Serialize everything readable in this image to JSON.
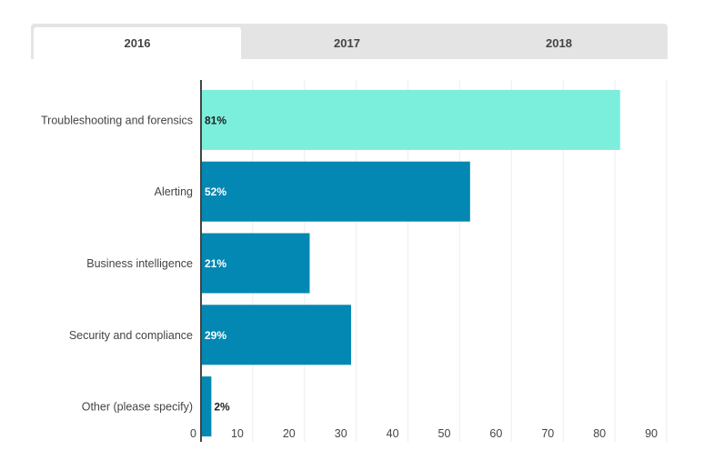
{
  "tabs": [
    {
      "label": "2016",
      "active": true
    },
    {
      "label": "2017",
      "active": false
    },
    {
      "label": "2018",
      "active": false
    }
  ],
  "colors": {
    "bar": "#0288b2",
    "bar_highlight": "#7beedc",
    "gridline": "#eeeeee",
    "axis": "#444444",
    "tab_bg": "#e4e4e4",
    "tab_active_bg": "#ffffff"
  },
  "chart_data": {
    "type": "bar",
    "orientation": "horizontal",
    "title": "",
    "xlabel": "",
    "ylabel": "",
    "categories": [
      "Troubleshooting and forensics",
      "Alerting",
      "Business intelligence",
      "Security and compliance",
      "Other (please specify)"
    ],
    "values": [
      81,
      52,
      21,
      29,
      2
    ],
    "value_labels": [
      "81%",
      "52%",
      "21%",
      "29%",
      "2%"
    ],
    "highlighted_index": 0,
    "xlim": [
      0,
      90
    ],
    "xticks": [
      0,
      10,
      20,
      30,
      40,
      50,
      60,
      70,
      80,
      90
    ],
    "grid": true,
    "legend": "none"
  }
}
